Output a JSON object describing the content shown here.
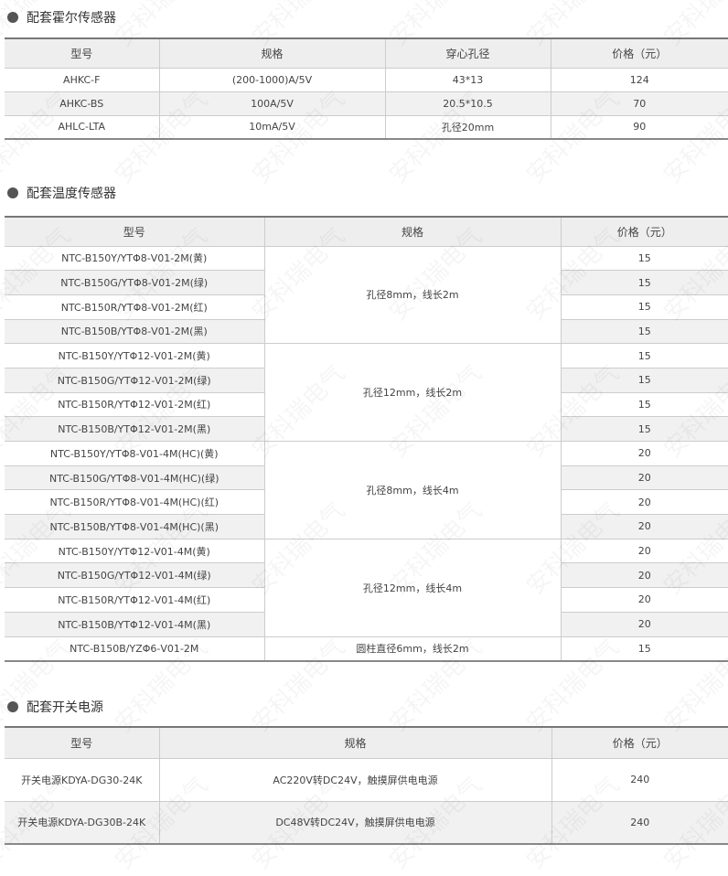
{
  "hall": {
    "title": "配套霍尔传感器",
    "headers": [
      "型号",
      "规格",
      "穿心孔径",
      "价格（元）"
    ],
    "rows": [
      [
        "AHKC-F",
        "(200-1000)A/5V",
        "43*13",
        "124"
      ],
      [
        "AHKC-BS",
        "100A/5V",
        "20.5*10.5",
        "70"
      ],
      [
        "AHLC-LTA",
        "10mA/5V",
        "孔径20mm",
        "90"
      ]
    ]
  },
  "temp": {
    "title": "配套温度传感器",
    "headers": [
      "型号",
      "规格",
      "价格（元）"
    ],
    "groups": [
      {
        "spec": "孔径8mm，线长2m",
        "rows": [
          [
            "NTC-B150Y/YTΦ8-V01-2M(黄)",
            "15"
          ],
          [
            "NTC-B150G/YTΦ8-V01-2M(绿)",
            "15"
          ],
          [
            "NTC-B150R/YTΦ8-V01-2M(红)",
            "15"
          ],
          [
            "NTC-B150B/YTΦ8-V01-2M(黑)",
            "15"
          ]
        ]
      },
      {
        "spec": "孔径12mm，线长2m",
        "rows": [
          [
            "NTC-B150Y/YTΦ12-V01-2M(黄)",
            "15"
          ],
          [
            "NTC-B150G/YTΦ12-V01-2M(绿)",
            "15"
          ],
          [
            "NTC-B150R/YTΦ12-V01-2M(红)",
            "15"
          ],
          [
            "NTC-B150B/YTΦ12-V01-2M(黑)",
            "15"
          ]
        ]
      },
      {
        "spec": "孔径8mm，线长4m",
        "rows": [
          [
            "NTC-B150Y/YTΦ8-V01-4M(HC)(黄)",
            "20"
          ],
          [
            "NTC-B150G/YTΦ8-V01-4M(HC)(绿)",
            "20"
          ],
          [
            "NTC-B150R/YTΦ8-V01-4M(HC)(红)",
            "20"
          ],
          [
            "NTC-B150B/YTΦ8-V01-4M(HC)(黑)",
            "20"
          ]
        ]
      },
      {
        "spec": "孔径12mm，线长4m",
        "rows": [
          [
            "NTC-B150Y/YTΦ12-V01-4M(黄)",
            "20"
          ],
          [
            "NTC-B150G/YTΦ12-V01-4M(绿)",
            "20"
          ],
          [
            "NTC-B150R/YTΦ12-V01-4M(红)",
            "20"
          ],
          [
            "NTC-B150B/YTΦ12-V01-4M(黑)",
            "20"
          ]
        ]
      },
      {
        "spec": "圆柱直径6mm，线长2m",
        "rows": [
          [
            "NTC-B150B/YZΦ6-V01-2M",
            "15"
          ]
        ]
      }
    ]
  },
  "power": {
    "title": "配套开关电源",
    "headers": [
      "型号",
      "规格",
      "价格（元）"
    ],
    "rows": [
      [
        "开关电源KDYA-DG30-24K",
        "AC220V转DC24V，触摸屏供电电源",
        "240"
      ],
      [
        "开关电源KDYA-DG30B-24K",
        "DC48V转DC24V，触摸屏供电电源",
        "240"
      ]
    ]
  },
  "watermark": "安科瑞电气"
}
